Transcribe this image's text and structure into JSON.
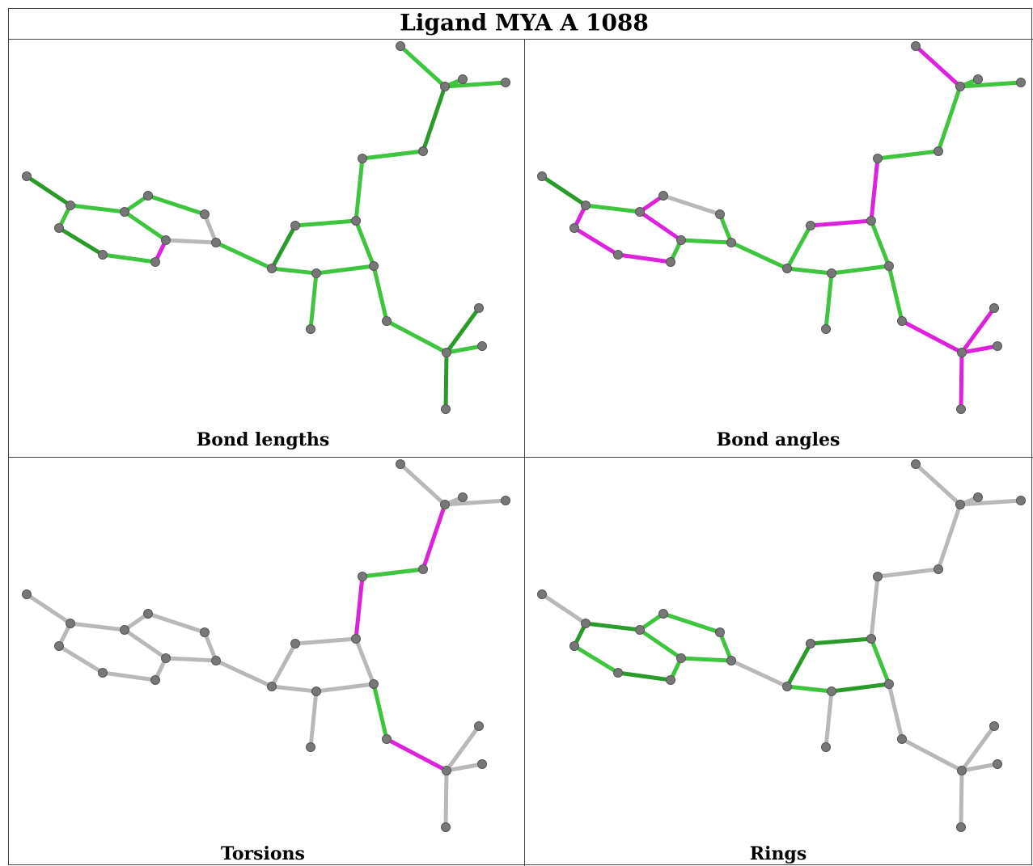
{
  "title": "Ligand MYA A 1088",
  "panels": [
    {
      "label": "Bond lengths"
    },
    {
      "label": "Bond angles"
    },
    {
      "label": "Torsions"
    },
    {
      "label": "Rings"
    }
  ]
}
